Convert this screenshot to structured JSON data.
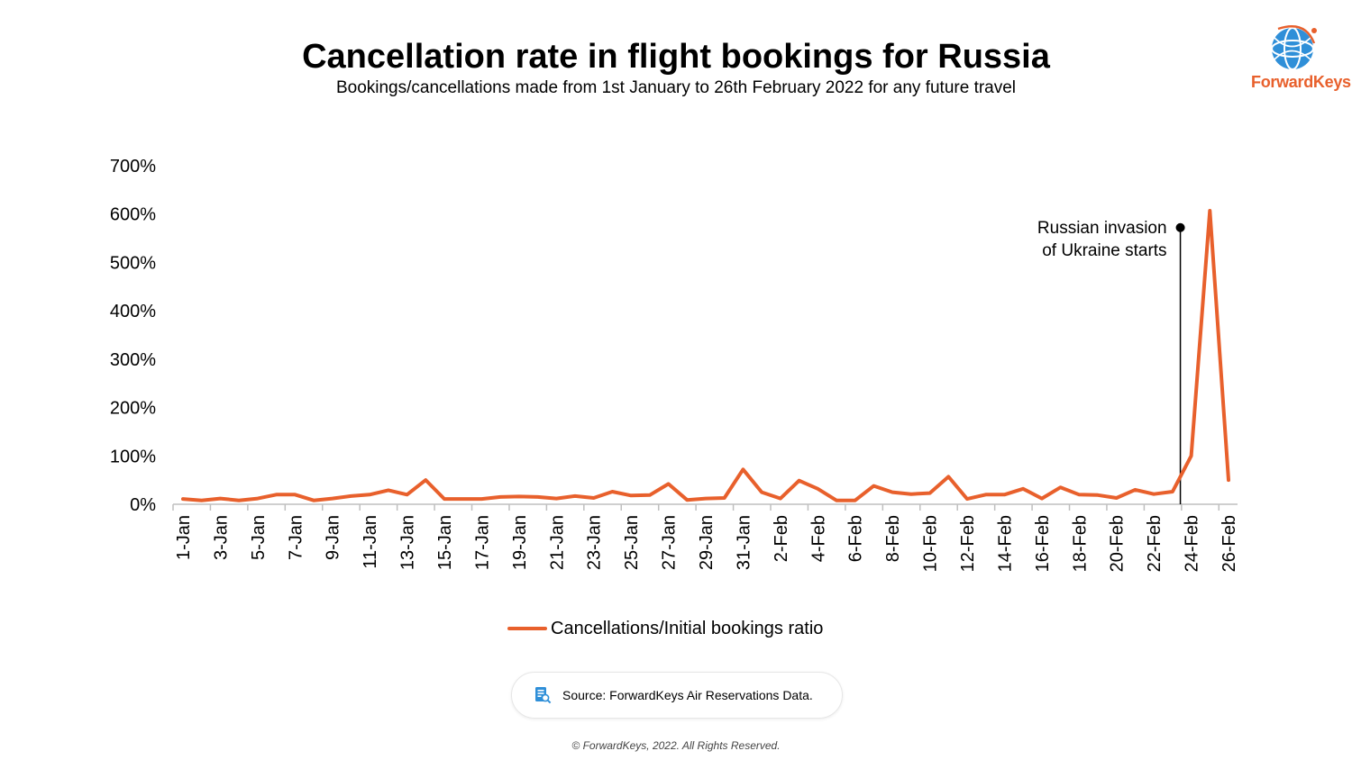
{
  "header": {
    "title": "Cancellation rate in flight bookings for Russia",
    "subtitle": "Bookings/cancellations made from 1st January to 26th February 2022 for any future travel"
  },
  "logo": {
    "text": "ForwardKeys",
    "icon": "globe-icon",
    "color": "#e8602c",
    "globe_color": "#2f8fd8"
  },
  "chart_data": {
    "type": "line",
    "title": "Cancellation rate in flight bookings for Russia",
    "subtitle": "Bookings/cancellations made from 1st January to 26th February 2022 for any future travel",
    "xlabel": "",
    "ylabel": "",
    "ylim": [
      0,
      700
    ],
    "yticks": [
      "0%",
      "100%",
      "200%",
      "300%",
      "400%",
      "500%",
      "600%",
      "700%"
    ],
    "grid": false,
    "legend_position": "bottom",
    "x": [
      "1-Jan",
      "2-Jan",
      "3-Jan",
      "4-Jan",
      "5-Jan",
      "6-Jan",
      "7-Jan",
      "8-Jan",
      "9-Jan",
      "10-Jan",
      "11-Jan",
      "12-Jan",
      "13-Jan",
      "14-Jan",
      "15-Jan",
      "16-Jan",
      "17-Jan",
      "18-Jan",
      "19-Jan",
      "20-Jan",
      "21-Jan",
      "22-Jan",
      "23-Jan",
      "24-Jan",
      "25-Jan",
      "26-Jan",
      "27-Jan",
      "28-Jan",
      "29-Jan",
      "30-Jan",
      "31-Jan",
      "1-Feb",
      "2-Feb",
      "3-Feb",
      "4-Feb",
      "5-Feb",
      "6-Feb",
      "7-Feb",
      "8-Feb",
      "9-Feb",
      "10-Feb",
      "11-Feb",
      "12-Feb",
      "13-Feb",
      "14-Feb",
      "15-Feb",
      "16-Feb",
      "17-Feb",
      "18-Feb",
      "19-Feb",
      "20-Feb",
      "21-Feb",
      "22-Feb",
      "23-Feb",
      "24-Feb",
      "25-Feb",
      "26-Feb"
    ],
    "x_tick_labels": [
      "1-Jan",
      "3-Jan",
      "5-Jan",
      "7-Jan",
      "9-Jan",
      "11-Jan",
      "13-Jan",
      "15-Jan",
      "17-Jan",
      "19-Jan",
      "21-Jan",
      "23-Jan",
      "25-Jan",
      "27-Jan",
      "29-Jan",
      "31-Jan",
      "2-Feb",
      "4-Feb",
      "6-Feb",
      "8-Feb",
      "10-Feb",
      "12-Feb",
      "14-Feb",
      "16-Feb",
      "18-Feb",
      "20-Feb",
      "22-Feb",
      "24-Feb",
      "26-Feb"
    ],
    "series": [
      {
        "name": "Cancellations/Initial bookings ratio",
        "color": "#e8602c",
        "values": [
          11,
          8,
          12,
          8,
          12,
          20,
          20,
          8,
          12,
          17,
          20,
          29,
          20,
          50,
          11,
          11,
          11,
          15,
          16,
          15,
          12,
          17,
          13,
          26,
          18,
          19,
          42,
          9,
          12,
          13,
          72,
          25,
          12,
          49,
          32,
          8,
          8,
          38,
          25,
          21,
          23,
          57,
          11,
          20,
          20,
          32,
          12,
          35,
          20,
          19,
          13,
          30,
          21,
          26,
          100,
          607,
          50
        ]
      }
    ],
    "annotations": [
      {
        "text_line1": "Russian invasion",
        "text_line2": "of Ukraine starts",
        "x": "24-Feb",
        "marker_value": 572
      }
    ]
  },
  "legend": {
    "label": "Cancellations/Initial bookings ratio"
  },
  "source": {
    "text": "Source: ForwardKeys Air Reservations Data.",
    "icon": "document-search-icon"
  },
  "footer": {
    "copyright": "© ForwardKeys, 2022. All Rights Reserved."
  }
}
